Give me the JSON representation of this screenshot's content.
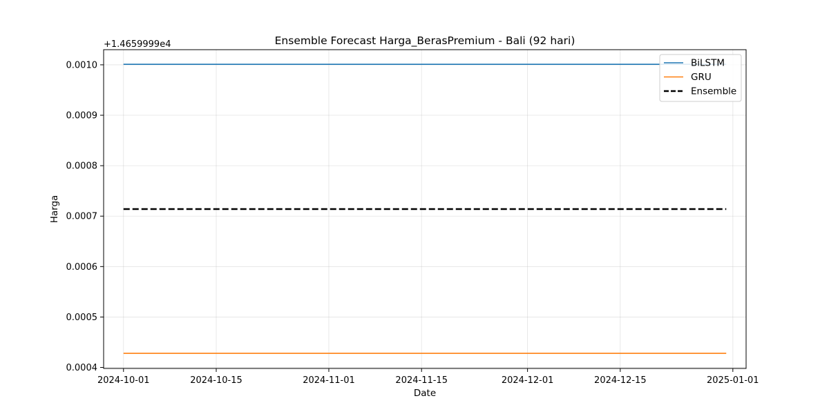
{
  "chart_data": {
    "type": "line",
    "title": "Ensemble Forecast Harga_BerasPremium - Bali (92 hari)",
    "xlabel": "Date",
    "ylabel": "Harga",
    "y_offset_label": "+1.4659999e4",
    "x_range": [
      "2024-09-28",
      "2025-01-03"
    ],
    "ylim": [
      0.000398,
      0.00103
    ],
    "x_ticks": [
      "2024-10-01",
      "2024-10-15",
      "2024-11-01",
      "2024-11-15",
      "2024-12-01",
      "2024-12-15",
      "2025-01-01"
    ],
    "y_ticks": [
      0.0004,
      0.0005,
      0.0006,
      0.0007,
      0.0008,
      0.0009,
      0.001
    ],
    "y_tick_labels": [
      "0.0004",
      "0.0005",
      "0.0006",
      "0.0007",
      "0.0008",
      "0.0009",
      "0.0010"
    ],
    "grid": true,
    "legend_position": "top-right",
    "series": [
      {
        "name": "BiLSTM",
        "color": "#1f77b4",
        "style": "solid",
        "x": [
          "2024-10-01",
          "2024-12-31"
        ],
        "y": [
          0.001001,
          0.001001
        ]
      },
      {
        "name": "GRU",
        "color": "#ff7f0e",
        "style": "solid",
        "x": [
          "2024-10-01",
          "2024-12-31"
        ],
        "y": [
          0.000428,
          0.000428
        ]
      },
      {
        "name": "Ensemble",
        "color": "#000000",
        "style": "dashed",
        "x": [
          "2024-10-01",
          "2024-12-31"
        ],
        "y": [
          0.000714,
          0.000714
        ]
      }
    ]
  }
}
